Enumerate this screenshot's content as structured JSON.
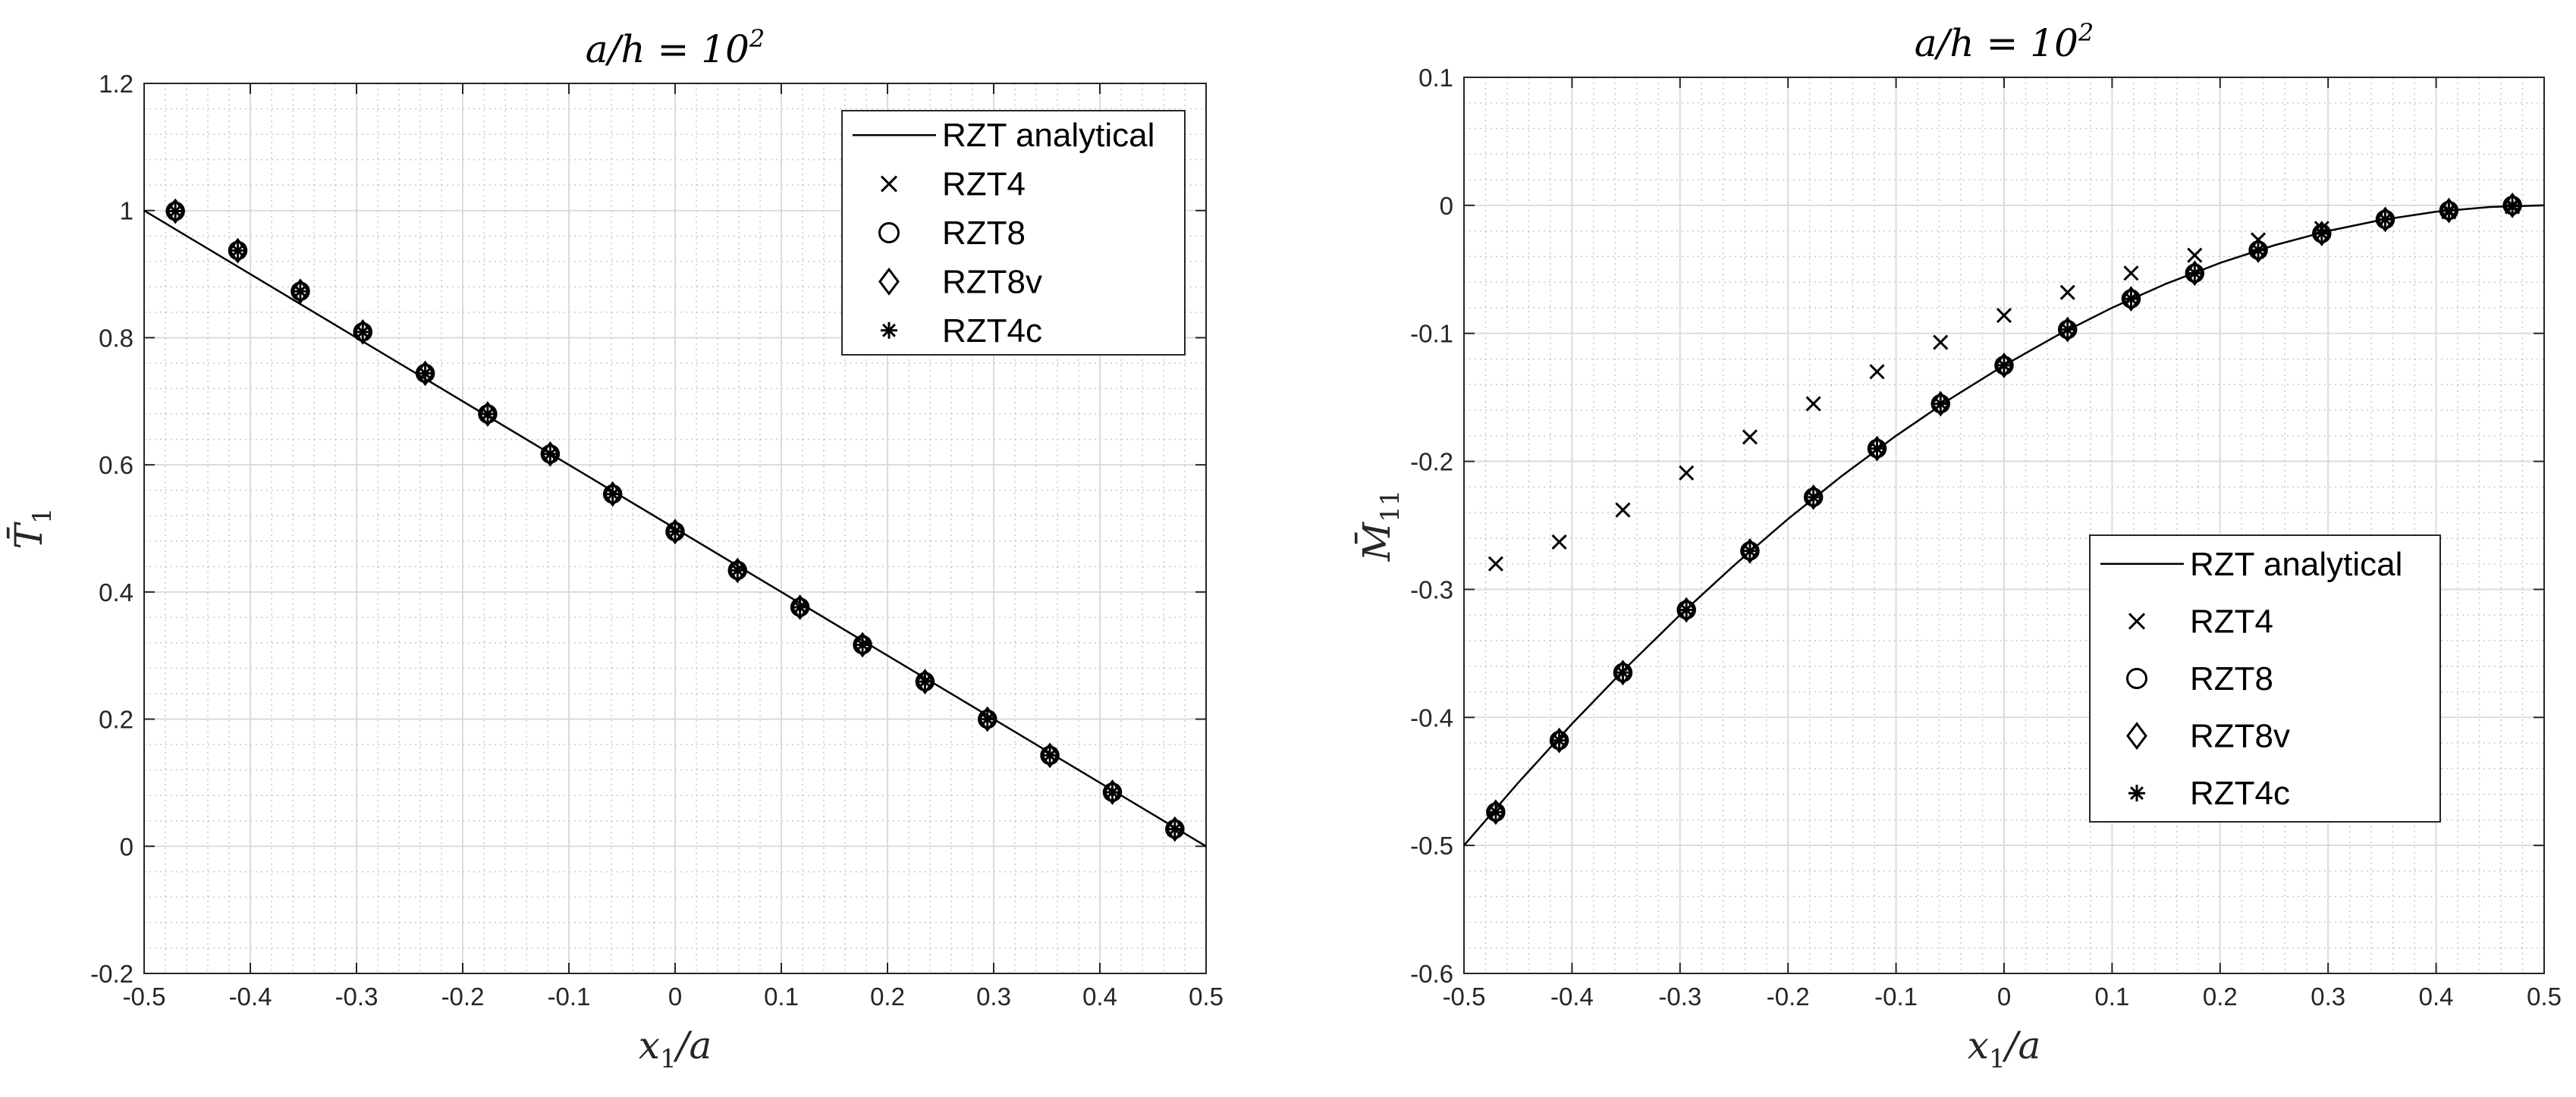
{
  "chart_data": [
    {
      "type": "line",
      "title": "a/h = 10^2",
      "title_base": "a/h = 10",
      "title_exp": "2",
      "xlabel": "x1/a",
      "xlabel_main": "x",
      "xlabel_sub": "1",
      "xlabel_rest": "/a",
      "ylabel": "T̄1",
      "ylabel_main": "T̄",
      "ylabel_sub": "1",
      "xlim": [
        -0.5,
        0.5
      ],
      "ylim": [
        -0.2,
        1.2
      ],
      "xticks": [
        -0.5,
        -0.4,
        -0.3,
        -0.2,
        -0.1,
        0,
        0.1,
        0.2,
        0.3,
        0.4,
        0.5
      ],
      "yticks": [
        -0.2,
        0,
        0.2,
        0.4,
        0.6,
        0.8,
        1,
        1.2
      ],
      "xtick_labels": [
        "-0.5",
        "-0.4",
        "-0.3",
        "-0.2",
        "-0.1",
        "0",
        "0.1",
        "0.2",
        "0.3",
        "0.4",
        "0.5"
      ],
      "ytick_labels": [
        "-0.2",
        "0",
        "0.2",
        "0.4",
        "0.6",
        "0.8",
        "1",
        "1.2"
      ],
      "grid": true,
      "legend_position": "top-right",
      "analytical": {
        "name": "RZT analytical",
        "x": [
          -0.5,
          -0.4,
          -0.3,
          -0.2,
          -0.1,
          0,
          0.1,
          0.2,
          0.3,
          0.4,
          0.5
        ],
        "y": [
          1.0,
          0.9,
          0.8,
          0.7,
          0.6,
          0.5,
          0.4,
          0.3,
          0.2,
          0.1,
          0.0
        ]
      },
      "x_points": [
        -0.4706,
        -0.4118,
        -0.3529,
        -0.2941,
        -0.2353,
        -0.1765,
        -0.1176,
        -0.0588,
        0,
        0.0588,
        0.1176,
        0.1765,
        0.2353,
        0.2941,
        0.3529,
        0.4118,
        0.4706
      ],
      "series": [
        {
          "name": "RZT4",
          "marker": "x",
          "y": [
            0.999,
            0.937,
            0.873,
            0.809,
            0.744,
            0.68,
            0.617,
            0.554,
            0.495,
            0.434,
            0.376,
            0.317,
            0.259,
            0.2,
            0.143,
            0.085,
            0.027
          ]
        },
        {
          "name": "RZT8",
          "marker": "o",
          "y": [
            0.999,
            0.937,
            0.873,
            0.809,
            0.744,
            0.68,
            0.617,
            0.554,
            0.495,
            0.434,
            0.376,
            0.317,
            0.259,
            0.2,
            0.143,
            0.085,
            0.027
          ]
        },
        {
          "name": "RZT8v",
          "marker": "diamond",
          "y": [
            0.999,
            0.937,
            0.873,
            0.809,
            0.744,
            0.68,
            0.617,
            0.554,
            0.495,
            0.434,
            0.376,
            0.317,
            0.259,
            0.2,
            0.143,
            0.085,
            0.027
          ]
        },
        {
          "name": "RZT4c",
          "marker": "asterisk",
          "y": [
            0.999,
            0.937,
            0.873,
            0.809,
            0.744,
            0.68,
            0.617,
            0.554,
            0.495,
            0.434,
            0.376,
            0.317,
            0.259,
            0.2,
            0.143,
            0.085,
            0.027
          ]
        }
      ]
    },
    {
      "type": "line",
      "title": "a/h = 10^2",
      "title_base": "a/h = 10",
      "title_exp": "2",
      "xlabel": "x1/a",
      "xlabel_main": "x",
      "xlabel_sub": "1",
      "xlabel_rest": "/a",
      "ylabel": "M̄11",
      "ylabel_main": "M̄",
      "ylabel_sub": "11",
      "xlim": [
        -0.5,
        0.5
      ],
      "ylim": [
        -0.6,
        0.1
      ],
      "xticks": [
        -0.5,
        -0.4,
        -0.3,
        -0.2,
        -0.1,
        0,
        0.1,
        0.2,
        0.3,
        0.4,
        0.5
      ],
      "yticks": [
        -0.6,
        -0.5,
        -0.4,
        -0.3,
        -0.2,
        -0.1,
        0,
        0.1
      ],
      "xtick_labels": [
        "-0.5",
        "-0.4",
        "-0.3",
        "-0.2",
        "-0.1",
        "0",
        "0.1",
        "0.2",
        "0.3",
        "0.4",
        "0.5"
      ],
      "ytick_labels": [
        "-0.6",
        "-0.5",
        "-0.4",
        "-0.3",
        "-0.2",
        "-0.1",
        "0",
        "0.1"
      ],
      "grid": true,
      "legend_position": "center-right",
      "analytical": {
        "name": "RZT analytical",
        "x": [
          -0.5,
          -0.45,
          -0.4,
          -0.35,
          -0.3,
          -0.25,
          -0.2,
          -0.15,
          -0.1,
          -0.05,
          0,
          0.05,
          0.1,
          0.15,
          0.2,
          0.25,
          0.3,
          0.35,
          0.4,
          0.45,
          0.5
        ],
        "y": [
          -0.5,
          -0.45125,
          -0.405,
          -0.36125,
          -0.32,
          -0.28125,
          -0.245,
          -0.21125,
          -0.18,
          -0.15125,
          -0.125,
          -0.10125,
          -0.08,
          -0.06125,
          -0.045,
          -0.03125,
          -0.02,
          -0.01125,
          -0.005,
          -0.00125,
          0
        ]
      },
      "x_points": [
        -0.4706,
        -0.4118,
        -0.3529,
        -0.2941,
        -0.2353,
        -0.1765,
        -0.1176,
        -0.0588,
        0,
        0.0588,
        0.1176,
        0.1765,
        0.2353,
        0.2941,
        0.3529,
        0.4118,
        0.4706
      ],
      "series": [
        {
          "name": "RZT4",
          "marker": "x",
          "y": [
            -0.28,
            -0.263,
            -0.238,
            -0.209,
            -0.181,
            -0.155,
            -0.13,
            -0.107,
            -0.086,
            -0.068,
            -0.053,
            -0.039,
            -0.027,
            -0.018,
            -0.011,
            -0.005,
            -0.001
          ]
        },
        {
          "name": "RZT8",
          "marker": "o",
          "y": [
            -0.474,
            -0.418,
            -0.365,
            -0.316,
            -0.27,
            -0.228,
            -0.19,
            -0.155,
            -0.125,
            -0.097,
            -0.073,
            -0.053,
            -0.035,
            -0.022,
            -0.011,
            -0.004,
            0
          ]
        },
        {
          "name": "RZT8v",
          "marker": "diamond",
          "y": [
            -0.474,
            -0.418,
            -0.365,
            -0.316,
            -0.27,
            -0.228,
            -0.19,
            -0.155,
            -0.125,
            -0.097,
            -0.073,
            -0.053,
            -0.035,
            -0.022,
            -0.011,
            -0.004,
            0
          ]
        },
        {
          "name": "RZT4c",
          "marker": "asterisk",
          "y": [
            -0.474,
            -0.418,
            -0.365,
            -0.316,
            -0.27,
            -0.228,
            -0.19,
            -0.155,
            -0.125,
            -0.097,
            -0.073,
            -0.053,
            -0.035,
            -0.022,
            -0.011,
            -0.004,
            0
          ]
        }
      ]
    }
  ]
}
